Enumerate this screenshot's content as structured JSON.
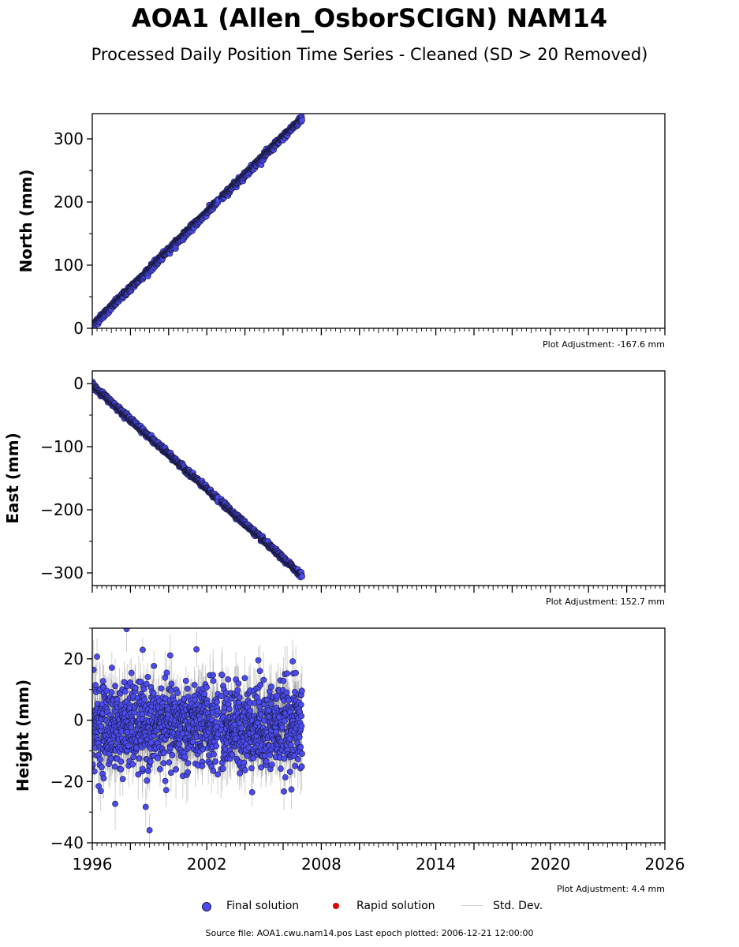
{
  "title": "AOA1 (Allen_OsborSCIGN) NAM14",
  "subtitle": "Processed Daily Position Time Series - Cleaned (SD > 20 Removed)",
  "colors": {
    "final": "#4b4bef",
    "final_edge": "#1a1a40",
    "rapid": "#dd0000",
    "stddev": "#9a9a9a"
  },
  "chart_data": [
    {
      "type": "scatter",
      "ylabel": "North (mm)",
      "xlim": [
        1996,
        2026
      ],
      "ylim": [
        0,
        340
      ],
      "yticks": [
        0,
        100,
        200,
        300
      ],
      "ytick_labels": [
        "0",
        "100",
        "200",
        "300"
      ],
      "adjustment": "Plot Adjustment: -167.6 mm",
      "series": [
        {
          "name": "Final solution",
          "trend": {
            "t0": 1996.0,
            "v0": 4,
            "rate": 29.9,
            "noise": 2.5
          },
          "x_range": [
            1996.0,
            2007.0
          ]
        }
      ]
    },
    {
      "type": "scatter",
      "ylabel": "East (mm)",
      "xlim": [
        1996,
        2026
      ],
      "ylim": [
        -320,
        20
      ],
      "yticks": [
        -300,
        -200,
        -100,
        0
      ],
      "ytick_labels": [
        "−300",
        "−200",
        "−100",
        "0"
      ],
      "adjustment": "Plot Adjustment: 152.7 mm",
      "series": [
        {
          "name": "Final solution",
          "trend": {
            "t0": 1996.0,
            "v0": -2,
            "rate": -27.5,
            "noise": 2.0
          },
          "x_range": [
            1996.0,
            2007.0
          ]
        }
      ]
    },
    {
      "type": "scatter",
      "ylabel": "Height (mm)",
      "xlim": [
        1996,
        2026
      ],
      "ylim": [
        -40,
        30
      ],
      "yticks": [
        -40,
        -20,
        0,
        20
      ],
      "ytick_labels": [
        "−40",
        "−20",
        "0",
        "20"
      ],
      "xticks": [
        1996,
        2002,
        2008,
        2014,
        2020,
        2026
      ],
      "xtick_labels": [
        "1996",
        "2002",
        "2008",
        "2014",
        "2020",
        "2026"
      ],
      "adjustment": "Plot Adjustment: 4.4 mm",
      "series": [
        {
          "name": "Final solution",
          "trend": {
            "t0": 1996.0,
            "v0": -2,
            "rate": 0,
            "noise": 7
          },
          "x_range": [
            1996.0,
            2007.0
          ],
          "outliers": [
            [
              1996.25,
              20.7
            ],
            [
              1997.8,
              29.7
            ],
            [
              1999.0,
              -35.9
            ],
            [
              1998.8,
              -28.3
            ],
            [
              1997.2,
              -27.3
            ],
            [
              2004.7,
              19.5
            ],
            [
              2006.5,
              19.2
            ]
          ]
        }
      ]
    }
  ],
  "legend": {
    "final": "Final solution",
    "rapid": "Rapid solution",
    "std": "Std. Dev."
  },
  "footer": "Source file: AOA1.cwu.nam14.pos  Last epoch plotted: 2006-12-21 12:00:00"
}
